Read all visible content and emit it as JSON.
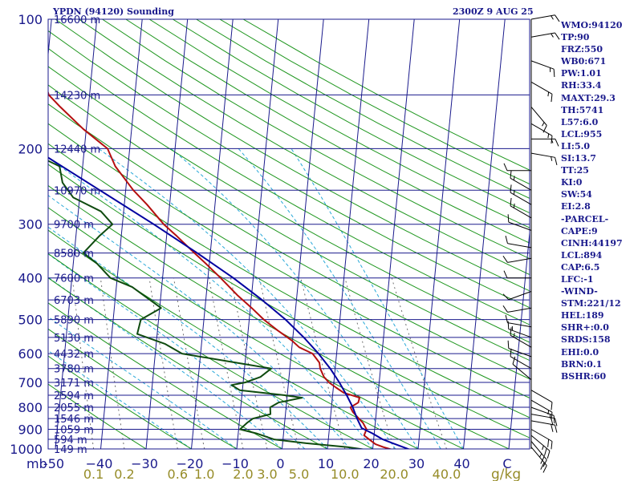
{
  "header": {
    "station": "YPDN (94120) Sounding",
    "time": "2300Z  9 AUG 25"
  },
  "indices": [
    "WMO:94120",
    "TP:90",
    "FRZ:550",
    "WB0:671",
    "PW:1.01",
    "RH:33.4",
    "MAXT:29.3",
    "TH:5741",
    "L57:6.0",
    "LCL:955",
    "LI:5.0",
    "SI:13.7",
    "TT:25",
    "KI:0",
    "SW:54",
    "EI:2.8",
    "-PARCEL-",
    "CAPE:9",
    "CINH:44197",
    "LCL:894",
    "CAP:6.5",
    "LFC:-1",
    "-WIND-",
    "STM:221/12",
    "HEL:189",
    "SHR+:0.0",
    "SRDS:158",
    "EHI:0.0",
    "BRN:0.1",
    "BSHR:60"
  ],
  "colors": {
    "isobar": "#1a1a8c",
    "isotherm": "#1a1a8c",
    "dry_adiabat": "#1e961e",
    "moist_adiabat": "#28a8d8",
    "mixing_ratio": "#707070",
    "temperature": "#b40f0f",
    "dewpoint": "#0f4b0f",
    "parcel": "#0000a0",
    "text": "#1a1a8c",
    "mr_label": "#968c28",
    "wind": "#000000"
  },
  "chart_data": {
    "type": "line",
    "title": "",
    "xlabel": "",
    "ylabel": "mb",
    "x_units_label": "g/kg",
    "y_log_scale": true,
    "pressure_ticks": [
      100,
      200,
      300,
      400,
      500,
      600,
      700,
      800,
      900,
      1000
    ],
    "pressure_tick_labels": [
      "100",
      "200",
      "300",
      "400",
      "500",
      "600",
      "700",
      "800",
      "900",
      "1000"
    ],
    "temperature_ticks": [
      -50,
      -40,
      -30,
      -20,
      -10,
      0,
      10,
      20,
      30,
      40,
      50
    ],
    "temperature_tick_labels": [
      "-50",
      "−40",
      "−30",
      "−20",
      "−10",
      "0",
      "10",
      "20",
      "30",
      "40",
      "C"
    ],
    "mixing_ratio_labels": [
      "0.1",
      "0.2",
      "0.6",
      "1.0",
      "2.0",
      "3.0",
      "5.0",
      "10.0",
      "20.0",
      "40.0"
    ],
    "height_levels": [
      {
        "p": 100,
        "h": "16600 m"
      },
      {
        "p": 150,
        "h": "14230 m"
      },
      {
        "p": 200,
        "h": "12440 m"
      },
      {
        "p": 250,
        "h": "10970 m"
      },
      {
        "p": 300,
        "h": "9700 m"
      },
      {
        "p": 350,
        "h": "8580 m"
      },
      {
        "p": 400,
        "h": "7600 m"
      },
      {
        "p": 450,
        "h": "6703 m"
      },
      {
        "p": 500,
        "h": "5890 m"
      },
      {
        "p": 550,
        "h": "5130 m"
      },
      {
        "p": 600,
        "h": "4432 m"
      },
      {
        "p": 650,
        "h": "3780 m"
      },
      {
        "p": 700,
        "h": "3171 m"
      },
      {
        "p": 750,
        "h": "2594 m"
      },
      {
        "p": 800,
        "h": "2055 m"
      },
      {
        "p": 850,
        "h": "1546 m"
      },
      {
        "p": 900,
        "h": "1059 m"
      },
      {
        "p": 950,
        "h": "594 m"
      },
      {
        "p": 1000,
        "h": "149 m"
      }
    ],
    "series": [
      {
        "key": "temperature",
        "points": [
          [
            1005,
            24.5
          ],
          [
            990,
            22.3
          ],
          [
            975,
            20.5
          ],
          [
            950,
            19.0
          ],
          [
            930,
            17.8
          ],
          [
            900,
            18.2
          ],
          [
            870,
            17.3
          ],
          [
            850,
            16.3
          ],
          [
            820,
            14.8
          ],
          [
            800,
            14.2
          ],
          [
            780,
            15.8
          ],
          [
            760,
            16.0
          ],
          [
            740,
            12.4
          ],
          [
            720,
            10.6
          ],
          [
            700,
            8.9
          ],
          [
            680,
            7.7
          ],
          [
            650,
            6.7
          ],
          [
            630,
            6.4
          ],
          [
            600,
            4.7
          ],
          [
            580,
            1.6
          ],
          [
            560,
            -0.1
          ],
          [
            530,
            -3.5
          ],
          [
            500,
            -6.8
          ],
          [
            470,
            -9.7
          ],
          [
            440,
            -13.0
          ],
          [
            400,
            -17.2
          ],
          [
            370,
            -20.8
          ],
          [
            350,
            -23.5
          ],
          [
            320,
            -27.7
          ],
          [
            300,
            -30.9
          ],
          [
            270,
            -35.0
          ],
          [
            250,
            -38.3
          ],
          [
            220,
            -42.8
          ],
          [
            200,
            -44.9
          ],
          [
            180,
            -50.7
          ],
          [
            160,
            -56.2
          ],
          [
            150,
            -59.0
          ],
          [
            135,
            -60.8
          ],
          [
            120,
            -65.9
          ],
          [
            110,
            -66.9
          ],
          [
            100,
            -71.2
          ]
        ]
      },
      {
        "key": "dewpoint",
        "points": [
          [
            1005,
            18.8
          ],
          [
            990,
            14.4
          ],
          [
            970,
            5.2
          ],
          [
            950,
            -2.0
          ],
          [
            920,
            -6.0
          ],
          [
            900,
            -9.7
          ],
          [
            870,
            -8.3
          ],
          [
            850,
            -7.1
          ],
          [
            830,
            -3.3
          ],
          [
            800,
            -3.5
          ],
          [
            780,
            -1.8
          ],
          [
            760,
            3.3
          ],
          [
            750,
            -0.6
          ],
          [
            730,
            -10.6
          ],
          [
            710,
            -12.5
          ],
          [
            700,
            -9.5
          ],
          [
            680,
            -6.3
          ],
          [
            650,
            -4.1
          ],
          [
            630,
            -12.0
          ],
          [
            600,
            -24.1
          ],
          [
            570,
            -28.0
          ],
          [
            540,
            -34.4
          ],
          [
            500,
            -33.9
          ],
          [
            470,
            -29.7
          ],
          [
            420,
            -36.5
          ],
          [
            400,
            -41.5
          ],
          [
            370,
            -44.8
          ],
          [
            350,
            -48.0
          ],
          [
            320,
            -44.9
          ],
          [
            300,
            -42.2
          ],
          [
            280,
            -45.0
          ],
          [
            260,
            -51.4
          ],
          [
            240,
            -54.1
          ],
          [
            220,
            -55.1
          ],
          [
            200,
            -63.5
          ],
          [
            190,
            -63.0
          ],
          [
            170,
            -61.0
          ],
          [
            150,
            -64.3
          ],
          [
            130,
            -70.1
          ],
          [
            120,
            -73.8
          ],
          [
            110,
            -79.5
          ],
          [
            100,
            -84.1
          ]
        ]
      },
      {
        "key": "parcel",
        "points": [
          [
            1005,
            28.4
          ],
          [
            970,
            24.3
          ],
          [
            950,
            22.0
          ],
          [
            920,
            19.6
          ],
          [
            894,
            17.1
          ],
          [
            850,
            15.9
          ],
          [
            800,
            14.7
          ],
          [
            750,
            13.1
          ],
          [
            700,
            11.2
          ],
          [
            650,
            8.9
          ],
          [
            600,
            6.0
          ],
          [
            550,
            2.4
          ],
          [
            500,
            -2.0
          ],
          [
            450,
            -7.6
          ],
          [
            400,
            -14.4
          ],
          [
            350,
            -22.9
          ],
          [
            300,
            -33.1
          ],
          [
            250,
            -45.7
          ],
          [
            200,
            -61.1
          ],
          [
            150,
            -80.6
          ],
          [
            120,
            -95.7
          ],
          [
            110,
            -103.1
          ]
        ]
      }
    ],
    "winds": [
      {
        "p": 100,
        "dir": 80,
        "spd": 15
      },
      {
        "p": 110,
        "dir": 80,
        "spd": 15
      },
      {
        "p": 125,
        "dir": 110,
        "spd": 15
      },
      {
        "p": 140,
        "dir": 120,
        "spd": 15
      },
      {
        "p": 160,
        "dir": 140,
        "spd": 15
      },
      {
        "p": 175,
        "dir": 120,
        "spd": 15
      },
      {
        "p": 190,
        "dir": 90,
        "spd": 15
      },
      {
        "p": 205,
        "dir": 100,
        "spd": 15
      },
      {
        "p": 225,
        "dir": 270,
        "spd": 10
      },
      {
        "p": 250,
        "dir": 300,
        "spd": 15
      },
      {
        "p": 270,
        "dir": 300,
        "spd": 15
      },
      {
        "p": 290,
        "dir": 300,
        "spd": 15
      },
      {
        "p": 310,
        "dir": 290,
        "spd": 10
      },
      {
        "p": 340,
        "dir": 280,
        "spd": 10
      },
      {
        "p": 360,
        "dir": 260,
        "spd": 10
      },
      {
        "p": 400,
        "dir": 270,
        "spd": 10
      },
      {
        "p": 430,
        "dir": 250,
        "spd": 10
      },
      {
        "p": 470,
        "dir": 260,
        "spd": 10
      },
      {
        "p": 520,
        "dir": 280,
        "spd": 10
      },
      {
        "p": 550,
        "dir": 290,
        "spd": 15
      },
      {
        "p": 580,
        "dir": 300,
        "spd": 15
      },
      {
        "p": 610,
        "dir": 290,
        "spd": 10
      },
      {
        "p": 650,
        "dir": 300,
        "spd": 10
      },
      {
        "p": 690,
        "dir": 310,
        "spd": 10
      },
      {
        "p": 730,
        "dir": 120,
        "spd": 10
      },
      {
        "p": 770,
        "dir": 120,
        "spd": 15
      },
      {
        "p": 800,
        "dir": 110,
        "spd": 15
      },
      {
        "p": 830,
        "dir": 100,
        "spd": 20
      },
      {
        "p": 860,
        "dir": 100,
        "spd": 20
      },
      {
        "p": 900,
        "dir": 120,
        "spd": 20
      },
      {
        "p": 930,
        "dir": 130,
        "spd": 25
      },
      {
        "p": 960,
        "dir": 140,
        "spd": 25
      },
      {
        "p": 990,
        "dir": 140,
        "spd": 20
      }
    ]
  }
}
